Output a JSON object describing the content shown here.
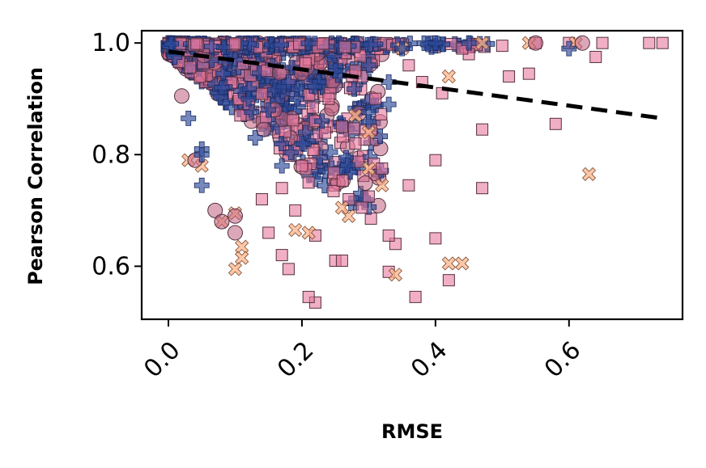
{
  "chart_data": {
    "type": "scatter",
    "title": "",
    "xlabel": "RMSE",
    "ylabel": "Pearson Correlation",
    "xlim": [
      -0.04,
      0.77
    ],
    "ylim": [
      0.505,
      1.022
    ],
    "x_ticks": [
      0.0,
      0.2,
      0.4,
      0.6
    ],
    "x_tick_labels": [
      "0.0",
      "0.2",
      "0.4",
      "0.6"
    ],
    "y_ticks": [
      0.6,
      0.8,
      1.0
    ],
    "y_tick_labels": [
      "0.6",
      "0.8",
      "1.0"
    ],
    "grid": false,
    "legend": "none",
    "colors": {
      "square": "#e8799f",
      "cross_x": "#fdb48a",
      "circle": "#c06080",
      "plus": "#2c4a9a",
      "trend": "#000000"
    },
    "trend_line": {
      "style": "dashed",
      "x": [
        0.0,
        0.74
      ],
      "y": [
        0.985,
        0.865
      ]
    },
    "series": [
      {
        "marker": "square",
        "points": [
          [
            0.72,
            1.0
          ],
          [
            0.74,
            1.0
          ],
          [
            0.65,
            1.0
          ],
          [
            0.64,
            0.975
          ],
          [
            0.58,
            0.855
          ],
          [
            0.54,
            0.945
          ],
          [
            0.51,
            0.94
          ],
          [
            0.47,
            0.845
          ],
          [
            0.47,
            0.74
          ],
          [
            0.42,
            0.575
          ],
          [
            0.4,
            0.65
          ],
          [
            0.4,
            0.79
          ],
          [
            0.37,
            0.545
          ],
          [
            0.36,
            0.745
          ],
          [
            0.34,
            0.64
          ],
          [
            0.33,
            0.59
          ],
          [
            0.33,
            0.655
          ],
          [
            0.32,
            0.775
          ],
          [
            0.3,
            0.725
          ],
          [
            0.29,
            0.705
          ],
          [
            0.28,
            0.82
          ],
          [
            0.27,
            0.72
          ],
          [
            0.25,
            0.61
          ],
          [
            0.26,
            0.61
          ],
          [
            0.22,
            0.535
          ],
          [
            0.21,
            0.545
          ],
          [
            0.22,
            0.655
          ],
          [
            0.18,
            0.595
          ],
          [
            0.17,
            0.62
          ],
          [
            0.15,
            0.66
          ],
          [
            0.21,
            0.75
          ],
          [
            0.19,
            0.7
          ],
          [
            0.45,
            0.98
          ],
          [
            0.5,
            0.995
          ],
          [
            0.55,
            1.0
          ],
          [
            0.6,
            1.0
          ],
          [
            0.38,
            0.93
          ],
          [
            0.41,
            0.91
          ],
          [
            0.36,
            0.96
          ],
          [
            0.44,
            0.99
          ],
          [
            0.26,
            0.85
          ],
          [
            0.24,
            0.9
          ],
          [
            0.2,
            0.78
          ],
          [
            0.17,
            0.74
          ],
          [
            0.14,
            0.72
          ],
          [
            0.28,
            0.95
          ],
          [
            0.31,
            0.9
          ],
          [
            0.22,
            0.86
          ]
        ]
      },
      {
        "marker": "x",
        "points": [
          [
            0.63,
            0.765
          ],
          [
            0.44,
            0.605
          ],
          [
            0.42,
            0.605
          ],
          [
            0.34,
            0.585
          ],
          [
            0.32,
            0.745
          ],
          [
            0.3,
            0.775
          ],
          [
            0.3,
            0.84
          ],
          [
            0.27,
            0.69
          ],
          [
            0.26,
            0.705
          ],
          [
            0.21,
            0.66
          ],
          [
            0.19,
            0.665
          ],
          [
            0.11,
            0.635
          ],
          [
            0.11,
            0.615
          ],
          [
            0.1,
            0.595
          ],
          [
            0.1,
            0.695
          ],
          [
            0.03,
            0.79
          ],
          [
            0.05,
            0.78
          ],
          [
            0.61,
            1.0
          ],
          [
            0.54,
            1.0
          ],
          [
            0.42,
            0.94
          ],
          [
            0.28,
            0.87
          ],
          [
            0.08,
            0.68
          ],
          [
            0.35,
            0.99
          ],
          [
            0.47,
            1.0
          ]
        ]
      },
      {
        "marker": "circle",
        "points": [
          [
            0.07,
            0.7
          ],
          [
            0.1,
            0.66
          ],
          [
            0.1,
            0.69
          ],
          [
            0.62,
            1.0
          ],
          [
            0.55,
            1.0
          ],
          [
            0.08,
            0.68
          ],
          [
            0.02,
            0.905
          ],
          [
            0.04,
            0.79
          ]
        ]
      },
      {
        "marker": "plus",
        "points": [
          [
            0.03,
            0.865
          ],
          [
            0.05,
            0.81
          ],
          [
            0.05,
            0.8
          ],
          [
            0.05,
            0.745
          ],
          [
            0.12,
            0.9
          ],
          [
            0.15,
            0.88
          ],
          [
            0.2,
            0.82
          ],
          [
            0.23,
            0.86
          ],
          [
            0.33,
            0.89
          ],
          [
            0.33,
            0.93
          ],
          [
            0.3,
            0.96
          ],
          [
            0.35,
            0.99
          ],
          [
            0.4,
            1.0
          ],
          [
            0.45,
            1.0
          ],
          [
            0.6,
            0.99
          ],
          [
            0.25,
            0.95
          ],
          [
            0.18,
            0.93
          ],
          [
            0.1,
            0.97
          ],
          [
            0.08,
            0.92
          ],
          [
            0.13,
            0.83
          ],
          [
            0.17,
            0.78
          ]
        ]
      }
    ]
  }
}
